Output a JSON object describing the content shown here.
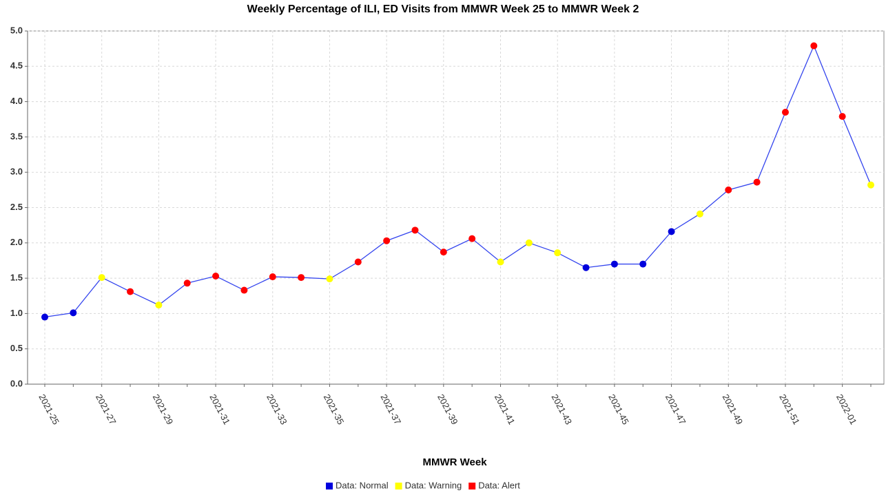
{
  "chart_data": {
    "type": "line",
    "title": "Weekly Percentage of ILI, ED Visits from MMWR Week 25 to MMWR Week 2",
    "x_label": "MMWR Week",
    "categories": [
      "2021-25",
      null,
      "2021-27",
      null,
      "2021-29",
      null,
      "2021-31",
      null,
      "2021-33",
      null,
      "2021-35",
      null,
      "2021-37",
      null,
      "2021-39",
      null,
      "2021-41",
      null,
      "2021-43",
      null,
      "2021-45",
      null,
      "2021-47",
      null,
      "2021-49",
      null,
      "2021-51",
      null,
      "2022-01",
      null
    ],
    "values": [
      0.95,
      1.01,
      1.51,
      1.31,
      1.12,
      1.43,
      1.53,
      1.33,
      1.52,
      1.51,
      1.49,
      1.73,
      2.03,
      2.18,
      1.87,
      2.06,
      1.73,
      2.0,
      1.86,
      1.65,
      1.7,
      1.7,
      2.16,
      2.41,
      2.75,
      2.86,
      3.85,
      4.79,
      3.79,
      2.82
    ],
    "line_color": "#3344ee",
    "point_colors": [
      "#0000dd",
      "#0000dd",
      "#ffff00",
      "#ff0000",
      "#ffff00",
      "#ff0000",
      "#ff0000",
      "#ff0000",
      "#ff0000",
      "#ff0000",
      "#ffff00",
      "#ff0000",
      "#ff0000",
      "#ff0000",
      "#ff0000",
      "#ff0000",
      "#ffff00",
      "#ffff00",
      "#ffff00",
      "#0000dd",
      "#0000dd",
      "#0000dd",
      "#0000dd",
      "#ffff00",
      "#ff0000",
      "#ff0000",
      "#ff0000",
      "#ff0000",
      "#ff0000",
      "#ffff00"
    ],
    "legend": [
      {
        "name": "Data: Normal",
        "color": "#0000dd"
      },
      {
        "name": "Data: Warning",
        "color": "#ffff00"
      },
      {
        "name": "Data: Alert",
        "color": "#ff0000"
      }
    ],
    "ylim": [
      0,
      5
    ],
    "yticks": [
      {
        "value": 0,
        "label": "0.0"
      },
      0.5,
      {
        "value": 1,
        "label": "1.0"
      },
      1.5,
      {
        "value": 2,
        "label": "2.0"
      },
      2.5,
      {
        "value": 3,
        "label": "3.0"
      },
      3.5,
      {
        "value": 4,
        "label": "4.0"
      },
      4.5,
      {
        "value": 5,
        "label": "5.0"
      }
    ],
    "grid": true
  }
}
